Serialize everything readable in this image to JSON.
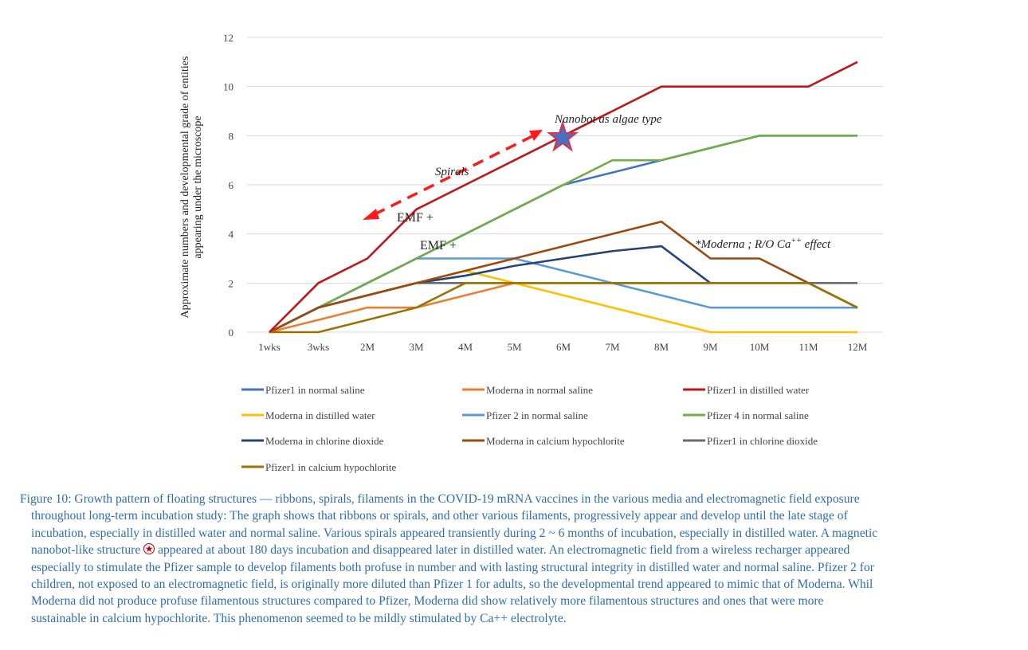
{
  "chart_data": {
    "type": "line",
    "title": "",
    "ylabel": [
      "Approximate numbers and developmental grade of entities",
      "appearing under the microscope"
    ],
    "xlabel": "",
    "ylim": [
      0,
      12
    ],
    "yticks": [
      0,
      2,
      4,
      6,
      8,
      10,
      12
    ],
    "grid": true,
    "legend_position": "bottom",
    "categories": [
      "1wks",
      "3wks",
      "2M",
      "3M",
      "4M",
      "5M",
      "6M",
      "7M",
      "8M",
      "9M",
      "10M",
      "11M",
      "12M"
    ],
    "series": [
      {
        "name": "Pfizer1 in chlorine dioxide",
        "color": "#6b6b6b",
        "values": [
          0,
          1,
          1.5,
          2,
          2,
          2,
          2,
          2,
          2,
          2,
          2,
          2,
          2
        ]
      },
      {
        "name": "Pfizer1 in normal saline",
        "color": "#4472c4",
        "values": [
          0,
          1,
          2,
          3,
          4,
          5,
          6,
          6.5,
          7,
          7.5,
          8,
          8,
          8
        ]
      },
      {
        "name": "Moderna in normal saline",
        "color": "#ed7d31",
        "values": [
          0,
          0.5,
          1,
          1,
          1.5,
          2,
          2,
          2,
          2,
          2,
          2,
          2,
          1
        ]
      },
      {
        "name": "Moderna in distilled water",
        "color": "#ffc000",
        "values": [
          0,
          1,
          1.5,
          2,
          2.5,
          2,
          1.5,
          1,
          0.5,
          0,
          0,
          0,
          0
        ]
      },
      {
        "name": "Pfizer 2 in normal saline",
        "color": "#5b9bd5",
        "values": [
          0,
          1,
          2,
          3,
          3,
          3,
          2.5,
          2,
          1.5,
          1,
          1,
          1,
          1
        ]
      },
      {
        "name": "Pfizer 4 in normal saline",
        "color": "#70ad47",
        "values": [
          0,
          1,
          2,
          3,
          4,
          5,
          6,
          7,
          7,
          7.5,
          8,
          8,
          8
        ]
      },
      {
        "name": "Moderna in chlorine dioxide",
        "color": "#264478",
        "values": [
          0,
          1,
          1.5,
          2,
          2.3,
          2.7,
          3,
          3.3,
          3.5,
          2,
          null,
          null,
          null
        ]
      },
      {
        "name": "Moderna in calcium hypochlorite",
        "color": "#9e480e",
        "values": [
          0,
          1,
          1.5,
          2,
          2.5,
          3,
          3.5,
          4,
          4.5,
          3,
          3,
          2,
          1
        ]
      },
      {
        "name": "Pfizer1 in calcium hypochlorite",
        "color": "#997300",
        "values": [
          0,
          0,
          0.5,
          1,
          2,
          2,
          2,
          2,
          2,
          2,
          2,
          2,
          1
        ]
      },
      {
        "name": "Pfizer1 in distilled water",
        "color": "#c0161b",
        "values": [
          0,
          2,
          3,
          5,
          6,
          7,
          8,
          9,
          10,
          10,
          10,
          10,
          11
        ]
      }
    ],
    "legend_order": [
      "Pfizer1 in normal saline",
      "Moderna in normal saline",
      "Pfizer1 in distilled water",
      "Moderna in distilled water",
      "Pfizer 2 in normal saline",
      "Pfizer 4 in normal saline",
      "Moderna in chlorine dioxide",
      "Moderna in calcium hypochlorite",
      "Pfizer1 in chlorine dioxide",
      "Pfizer1 in calcium hypochlorite"
    ],
    "annotations": {
      "nanobot": {
        "text": "Nanobot as algae type",
        "category": "6M",
        "value": 8
      },
      "spirals": {
        "text": "Spirals",
        "arrow_from": [
          "2M",
          4.5
        ],
        "arrow_to": [
          "5M+",
          8.2
        ]
      },
      "emf1": {
        "text": "EMF +",
        "category": "2M",
        "value": 4.6
      },
      "emf2": {
        "text": "EMF +",
        "category": "3M",
        "value": 3.4
      },
      "moderna_note": {
        "text_prefix": "*Moderna ; R/O Ca",
        "superscript": "++",
        "text_suffix": " effect"
      }
    }
  },
  "caption": {
    "lines": [
      "Figure 10: Growth pattern of floating structures — ribbons, spirals, filaments in the COVID-19 mRNA vaccines in the various media and electromagnetic field exposure",
      "throughout long-term incubation study: The graph shows that ribbons or spirals, and other various filaments, progressively appear and develop until the late stage of",
      "incubation, especially in distilled water and normal saline. Various spirals appeared transiently during 2 ~ 6 months of incubation, especially in distilled water. A magnetic",
      "nanobot-like structure ",
      " appeared at about 180 days incubation and disappeared later in distilled water. An electromagnetic field from a wireless recharger appeared",
      "especially to stimulate the Pfizer sample to develop filaments both profuse in number and with lasting structural integrity in distilled water and normal saline. Pfizer 2 for",
      "children, not exposed to an electromagnetic field, is originally more diluted than Pfizer 1 for adults, so the developmental trend appeared to mimic that of Moderna. Whil",
      "Moderna did not produce profuse filamentous structures compared to Pfizer, Moderna did show relatively more filamentous structures and ones that were more",
      "sustainable in calcium hypochlorite. This phenomenon seemed to be mildly stimulated by Ca++ electrolyte."
    ],
    "star_symbol": "★"
  }
}
